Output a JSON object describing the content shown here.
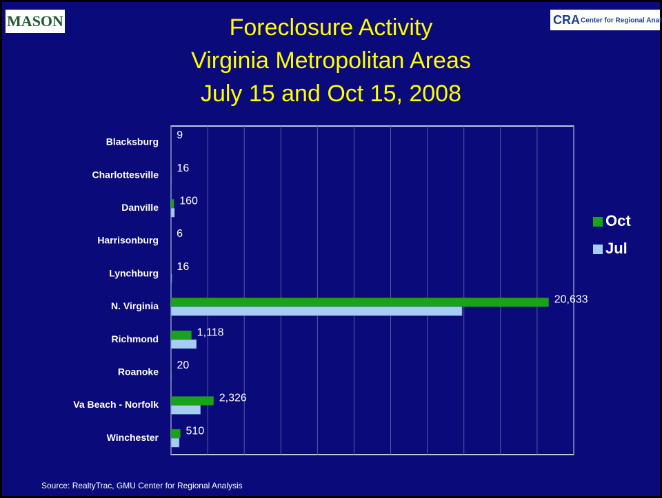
{
  "logo_left": "MASON",
  "logo_right": "Center for Regional Analysis",
  "logo_right_mark": "CRA",
  "source": "Source:  RealtyTrac, GMU Center for Regional Analysis",
  "chart_data": {
    "type": "hbar",
    "title": [
      "Foreclosure Activity",
      "Virginia Metropolitan Areas",
      "July 15 and Oct 15, 2008"
    ],
    "categories": [
      "Blacksburg",
      "Charlottesville",
      "Danville",
      "Harrisonburg",
      "Lynchburg",
      "N. Virginia",
      "Richmond",
      "Roanoke",
      "Va Beach - Norfolk",
      "Winchester"
    ],
    "series": [
      {
        "name": "Oct",
        "color": "#1aa31a",
        "values": [
          9,
          16,
          160,
          6,
          16,
          20633,
          1118,
          20,
          2326,
          510
        ],
        "value_labels": [
          "9",
          "16",
          "160",
          "6",
          "16",
          "20,633",
          "1,118",
          "20",
          "2,326",
          "510"
        ]
      },
      {
        "name": "Jul",
        "color": "#a8cdf5",
        "values": [
          5,
          30,
          190,
          10,
          40,
          15900,
          1390,
          30,
          1610,
          450
        ]
      }
    ],
    "xlim": [
      0,
      22000
    ],
    "xticks": [
      0,
      2000,
      4000,
      6000,
      8000,
      10000,
      12000,
      14000,
      16000,
      18000,
      20000,
      22000
    ],
    "grid": true,
    "legend": "right"
  }
}
